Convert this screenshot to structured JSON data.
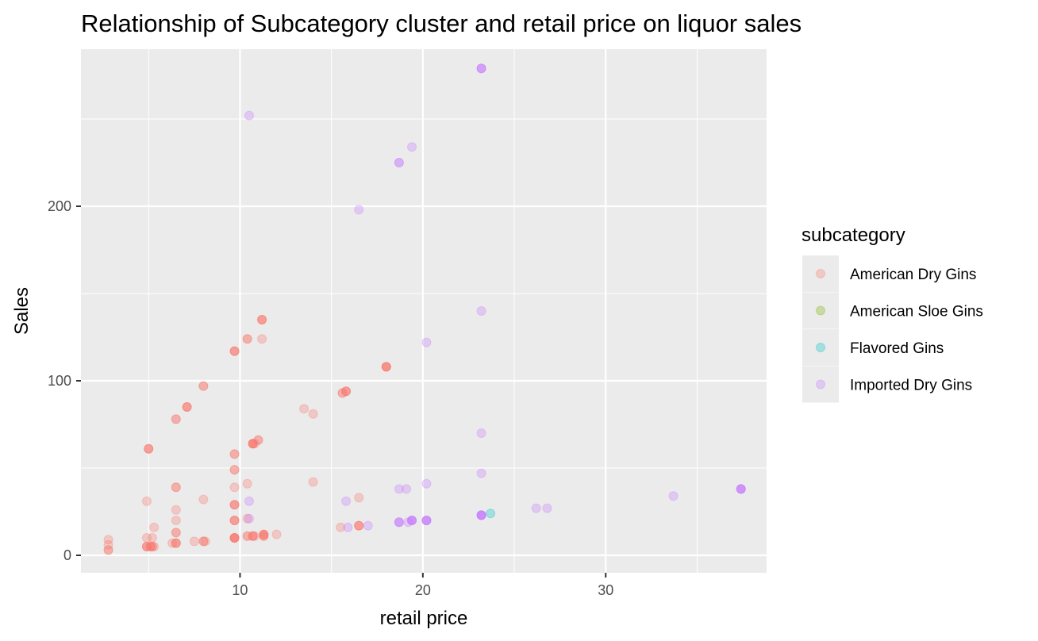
{
  "chart_data": {
    "type": "scatter",
    "title": "Relationship of Subcategory cluster and retail price on liquor sales",
    "xlabel": "retail price",
    "ylabel": "Sales",
    "xlim": [
      1.3,
      38.8
    ],
    "ylim": [
      -10,
      290
    ],
    "x_ticks": [
      10,
      20,
      30
    ],
    "y_ticks": [
      0,
      100,
      200
    ],
    "grid": true,
    "legend": {
      "title": "subcategory",
      "placement": "right",
      "entries": [
        "American Dry Gins",
        "American Sloe Gins",
        "Flavored Gins",
        "Imported Dry Gins"
      ]
    },
    "colors": {
      "American Dry Gins": "#F8766D",
      "American Sloe Gins": "#7CAE00",
      "Flavored Gins": "#00BFC4",
      "Imported Dry Gins": "#C77CFF",
      "panel": "#EBEBEB"
    },
    "point_alpha": 0.3,
    "series": [
      {
        "name": "American Dry Gins",
        "points": [
          [
            2.8,
            9
          ],
          [
            2.8,
            6
          ],
          [
            2.8,
            3
          ],
          [
            2.8,
            3
          ],
          [
            4.9,
            31
          ],
          [
            4.9,
            10
          ],
          [
            4.9,
            5
          ],
          [
            4.9,
            5
          ],
          [
            4.9,
            5
          ],
          [
            5.0,
            61
          ],
          [
            5.0,
            61
          ],
          [
            5.0,
            61
          ],
          [
            5.1,
            5
          ],
          [
            5.1,
            5
          ],
          [
            5.2,
            10
          ],
          [
            5.2,
            5
          ],
          [
            5.2,
            5
          ],
          [
            5.3,
            16
          ],
          [
            5.3,
            5
          ],
          [
            6.3,
            7
          ],
          [
            6.5,
            78
          ],
          [
            6.5,
            78
          ],
          [
            6.5,
            39
          ],
          [
            6.5,
            39
          ],
          [
            6.5,
            26
          ],
          [
            6.5,
            20
          ],
          [
            6.5,
            13
          ],
          [
            6.5,
            13
          ],
          [
            6.5,
            7
          ],
          [
            6.5,
            7
          ],
          [
            6.5,
            7
          ],
          [
            7.1,
            85
          ],
          [
            7.1,
            85
          ],
          [
            7.1,
            85
          ],
          [
            7.5,
            8
          ],
          [
            8.0,
            97
          ],
          [
            8.0,
            97
          ],
          [
            8.0,
            32
          ],
          [
            8.0,
            8
          ],
          [
            8.0,
            8
          ],
          [
            8.1,
            8
          ],
          [
            9.7,
            117
          ],
          [
            9.7,
            117
          ],
          [
            9.7,
            117
          ],
          [
            9.7,
            58
          ],
          [
            9.7,
            58
          ],
          [
            9.7,
            49
          ],
          [
            9.7,
            49
          ],
          [
            9.7,
            39
          ],
          [
            9.7,
            29
          ],
          [
            9.7,
            29
          ],
          [
            9.7,
            29
          ],
          [
            9.7,
            20
          ],
          [
            9.7,
            20
          ],
          [
            9.7,
            20
          ],
          [
            9.7,
            10
          ],
          [
            9.7,
            10
          ],
          [
            9.7,
            10
          ],
          [
            9.7,
            10
          ],
          [
            9.7,
            10
          ],
          [
            10.4,
            124
          ],
          [
            10.4,
            124
          ],
          [
            10.4,
            41
          ],
          [
            10.4,
            21
          ],
          [
            10.4,
            11
          ],
          [
            10.4,
            11
          ],
          [
            10.7,
            64
          ],
          [
            10.7,
            64
          ],
          [
            10.7,
            64
          ],
          [
            10.7,
            64
          ],
          [
            10.7,
            11
          ],
          [
            10.7,
            11
          ],
          [
            10.7,
            11
          ],
          [
            10.8,
            64
          ],
          [
            10.8,
            11
          ],
          [
            11.0,
            66
          ],
          [
            11.0,
            66
          ],
          [
            11.2,
            135
          ],
          [
            11.2,
            135
          ],
          [
            11.2,
            135
          ],
          [
            11.2,
            124
          ],
          [
            11.3,
            12
          ],
          [
            11.3,
            12
          ],
          [
            11.3,
            12
          ],
          [
            11.3,
            11
          ],
          [
            11.3,
            11
          ],
          [
            12.0,
            12
          ],
          [
            13.5,
            84
          ],
          [
            14.0,
            81
          ],
          [
            14.0,
            42
          ],
          [
            15.5,
            16
          ],
          [
            15.6,
            93
          ],
          [
            15.6,
            93
          ],
          [
            15.8,
            94
          ],
          [
            15.8,
            94
          ],
          [
            15.8,
            94
          ],
          [
            16.5,
            33
          ],
          [
            16.5,
            17
          ],
          [
            16.5,
            17
          ],
          [
            16.5,
            17
          ],
          [
            18.0,
            108
          ],
          [
            18.0,
            108
          ],
          [
            18.0,
            108
          ],
          [
            18.0,
            108
          ]
        ]
      },
      {
        "name": "American Sloe Gins",
        "points": []
      },
      {
        "name": "Flavored Gins",
        "points": [
          [
            23.7,
            24
          ]
        ]
      },
      {
        "name": "Imported Dry Gins",
        "points": [
          [
            10.5,
            252
          ],
          [
            10.5,
            21
          ],
          [
            10.5,
            31
          ],
          [
            15.8,
            31
          ],
          [
            15.9,
            16
          ],
          [
            17.0,
            17
          ],
          [
            16.5,
            198
          ],
          [
            18.7,
            225
          ],
          [
            18.7,
            225
          ],
          [
            19.4,
            234
          ],
          [
            18.7,
            38
          ],
          [
            18.7,
            19
          ],
          [
            18.7,
            19
          ],
          [
            18.7,
            19
          ],
          [
            19.1,
            38
          ],
          [
            19.2,
            19
          ],
          [
            19.4,
            20
          ],
          [
            19.4,
            20
          ],
          [
            19.4,
            20
          ],
          [
            19.4,
            20
          ],
          [
            20.2,
            122
          ],
          [
            20.2,
            41
          ],
          [
            20.2,
            20
          ],
          [
            20.2,
            20
          ],
          [
            20.2,
            20
          ],
          [
            20.2,
            20
          ],
          [
            23.2,
            279
          ],
          [
            23.2,
            279
          ],
          [
            23.2,
            279
          ],
          [
            23.2,
            140
          ],
          [
            23.2,
            70
          ],
          [
            23.2,
            47
          ],
          [
            23.2,
            23
          ],
          [
            23.2,
            23
          ],
          [
            23.2,
            23
          ],
          [
            23.2,
            23
          ],
          [
            23.2,
            23
          ],
          [
            26.2,
            27
          ],
          [
            26.8,
            27
          ],
          [
            33.7,
            34
          ],
          [
            37.4,
            38
          ],
          [
            37.4,
            38
          ],
          [
            37.4,
            38
          ],
          [
            37.4,
            38
          ]
        ]
      }
    ]
  }
}
